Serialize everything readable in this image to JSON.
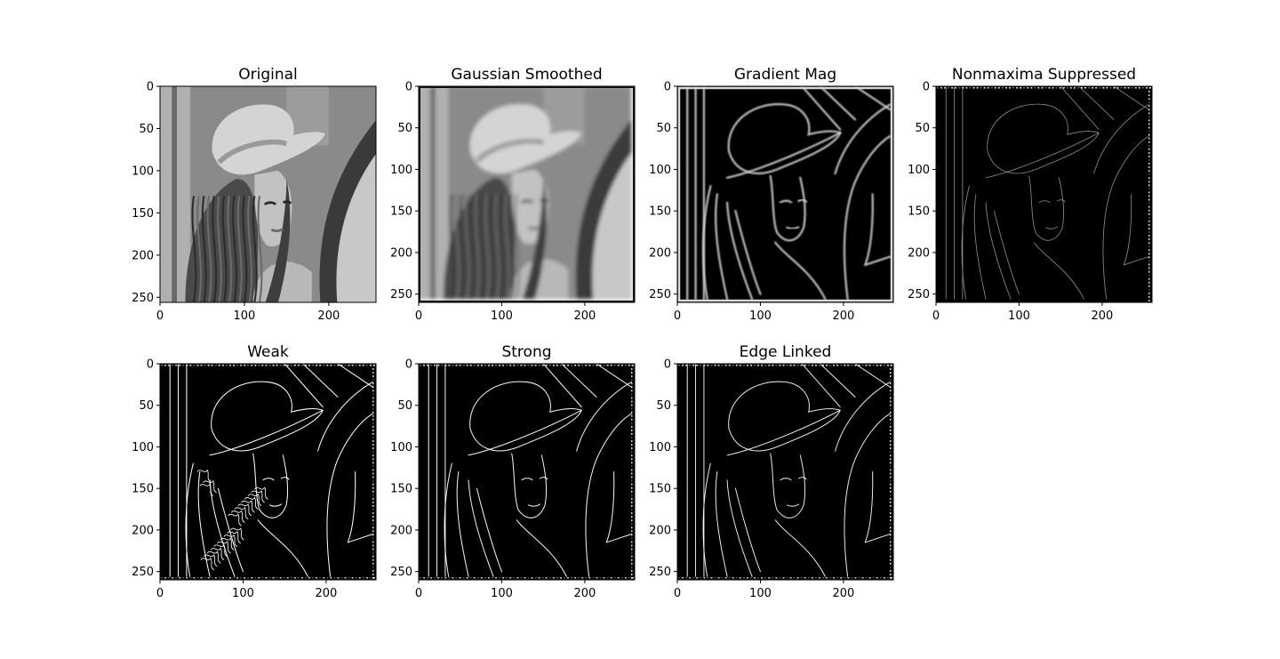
{
  "figure": {
    "panels": [
      {
        "title": "Original",
        "kind": "photo"
      },
      {
        "title": "Gaussian Smoothed",
        "kind": "smooth"
      },
      {
        "title": "Gradient Mag",
        "kind": "gradient"
      },
      {
        "title": "Nonmaxima Suppressed",
        "kind": "nms"
      },
      {
        "title": "Weak",
        "kind": "weak"
      },
      {
        "title": "Strong",
        "kind": "strong"
      },
      {
        "title": "Edge Linked",
        "kind": "linked"
      }
    ]
  },
  "chart_data": [
    {
      "type": "heatmap",
      "title": "Original",
      "xlim": [
        0,
        256
      ],
      "ylim": [
        256,
        0
      ],
      "xticks": [
        0,
        100,
        200
      ],
      "yticks": [
        0,
        50,
        100,
        150,
        200,
        250
      ],
      "colormap": "gray",
      "grid": false
    },
    {
      "type": "heatmap",
      "title": "Gaussian Smoothed",
      "xlim": [
        0,
        260
      ],
      "ylim": [
        260,
        0
      ],
      "xticks": [
        0,
        100,
        200
      ],
      "yticks": [
        0,
        50,
        100,
        150,
        200,
        250
      ],
      "colormap": "gray",
      "grid": false
    },
    {
      "type": "heatmap",
      "title": "Gradient Mag",
      "xlim": [
        0,
        260
      ],
      "ylim": [
        260,
        0
      ],
      "xticks": [
        0,
        100,
        200
      ],
      "yticks": [
        0,
        50,
        100,
        150,
        200,
        250
      ],
      "colormap": "gray",
      "grid": false
    },
    {
      "type": "heatmap",
      "title": "Nonmaxima Suppressed",
      "xlim": [
        0,
        260
      ],
      "ylim": [
        260,
        0
      ],
      "xticks": [
        0,
        100,
        200
      ],
      "yticks": [
        0,
        50,
        100,
        150,
        200,
        250
      ],
      "colormap": "gray",
      "grid": false
    },
    {
      "type": "heatmap",
      "title": "Weak",
      "xlim": [
        0,
        260
      ],
      "ylim": [
        260,
        0
      ],
      "xticks": [
        0,
        100,
        200
      ],
      "yticks": [
        0,
        50,
        100,
        150,
        200,
        250
      ],
      "colormap": "gray",
      "grid": false
    },
    {
      "type": "heatmap",
      "title": "Strong",
      "xlim": [
        0,
        260
      ],
      "ylim": [
        260,
        0
      ],
      "xticks": [
        0,
        100,
        200
      ],
      "yticks": [
        0,
        50,
        100,
        150,
        200,
        250
      ],
      "colormap": "gray",
      "grid": false
    },
    {
      "type": "heatmap",
      "title": "Edge Linked",
      "xlim": [
        0,
        260
      ],
      "ylim": [
        260,
        0
      ],
      "xticks": [
        0,
        100,
        200
      ],
      "yticks": [
        0,
        50,
        100,
        150,
        200,
        250
      ],
      "colormap": "gray",
      "grid": false
    }
  ]
}
